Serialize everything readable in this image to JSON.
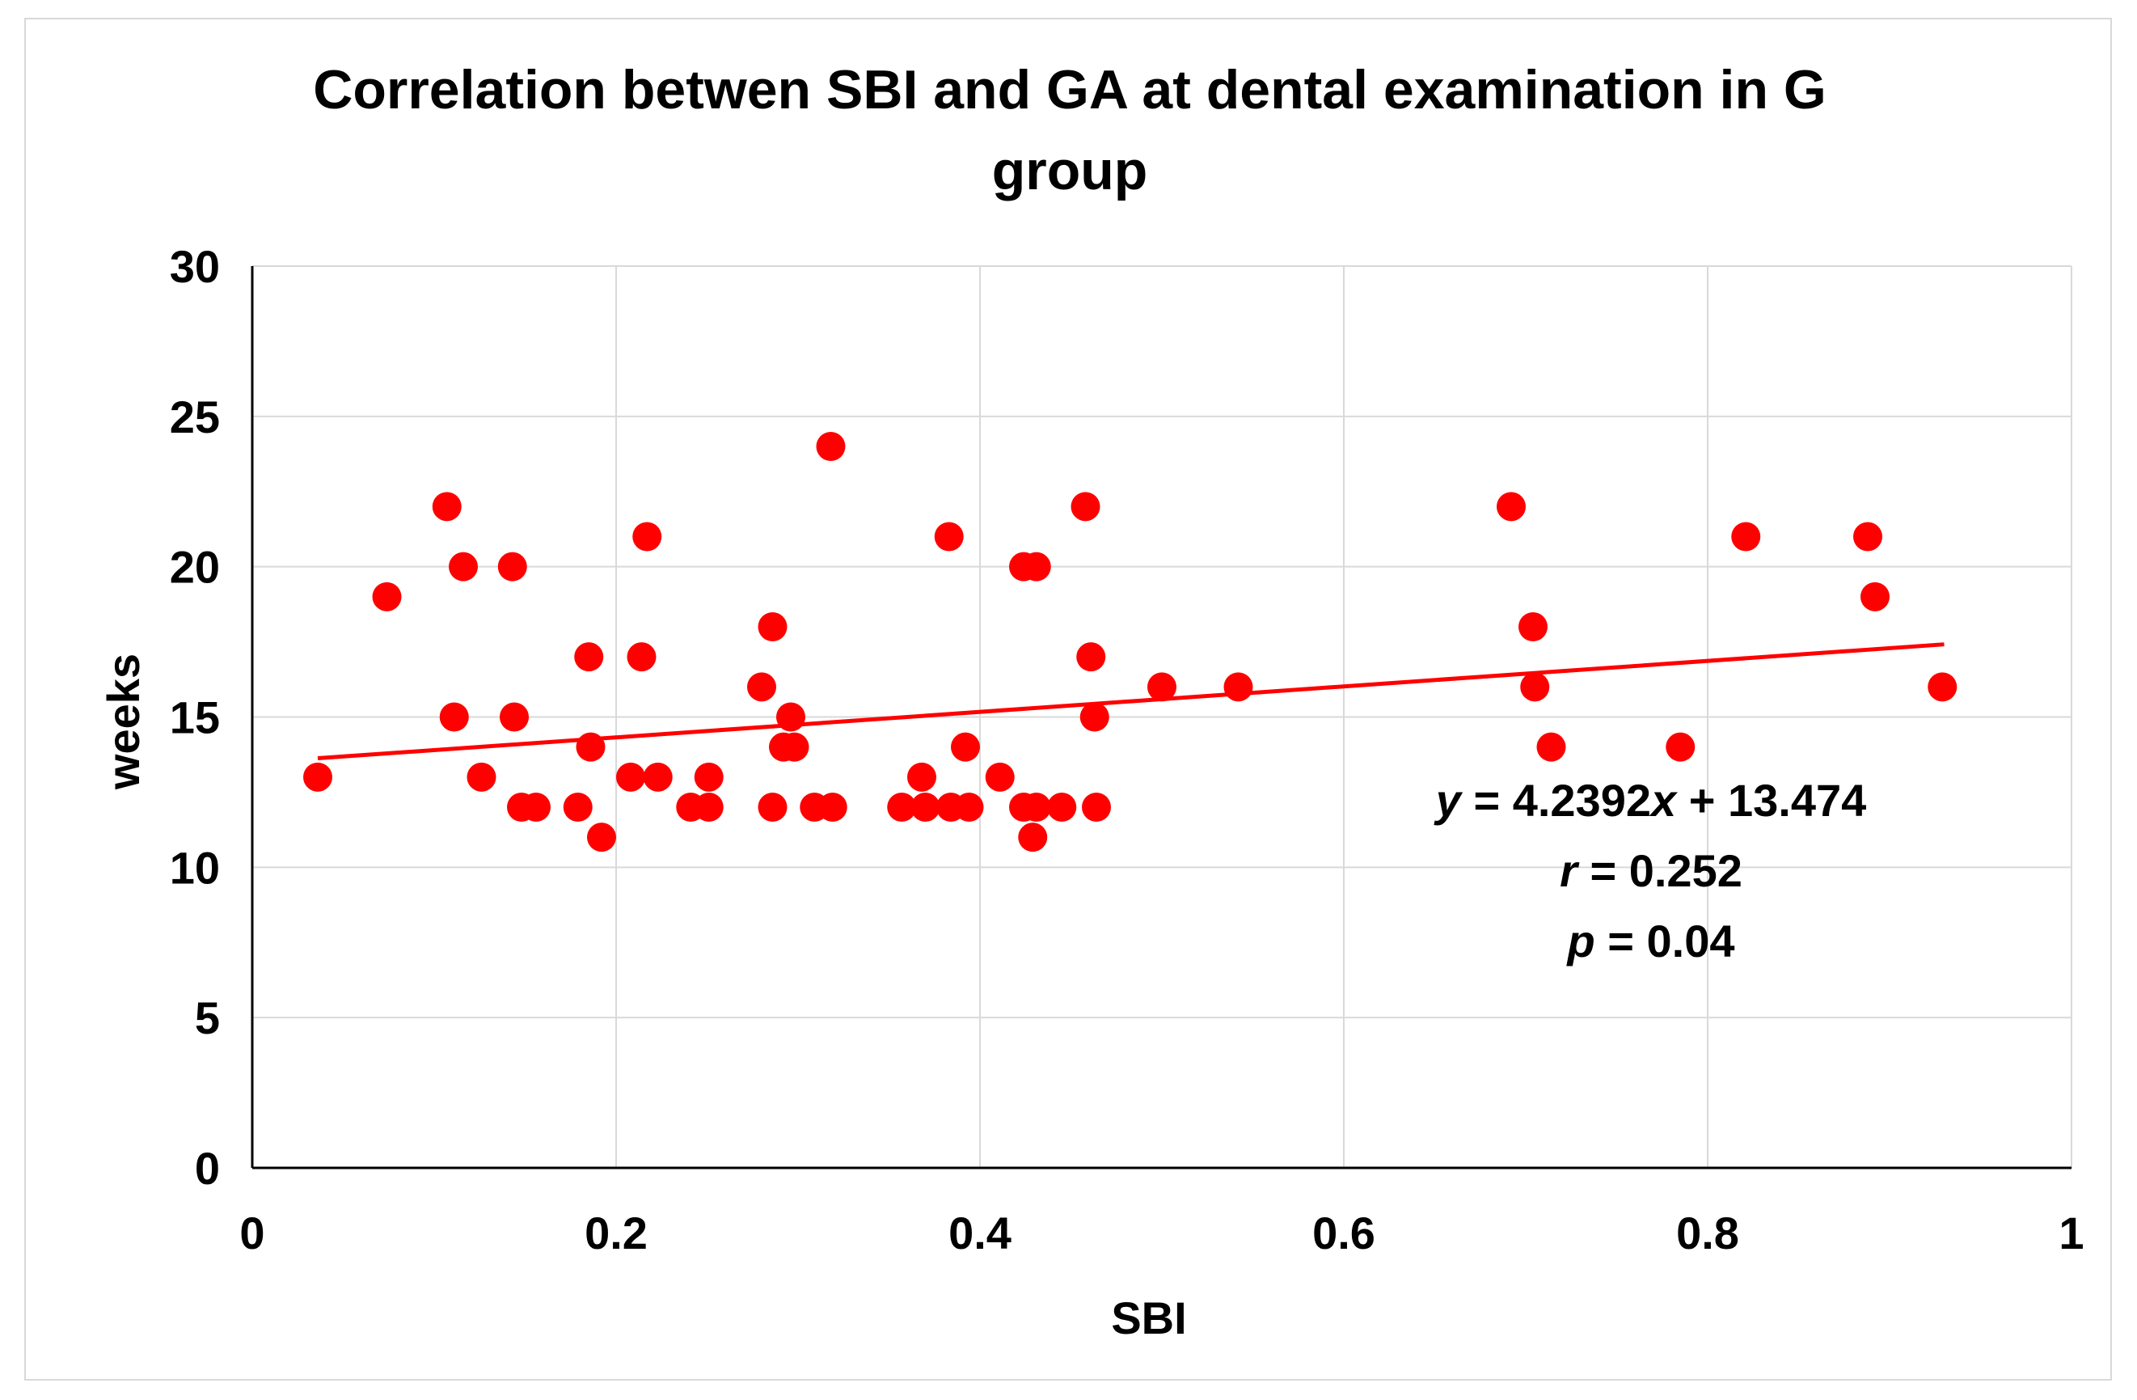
{
  "chart_data": {
    "type": "scatter",
    "title_lines": [
      "Correlation betwen SBI and GA at dental examination in G",
      "group"
    ],
    "xlabel": "SBI",
    "ylabel": "weeks",
    "xlim": [
      0,
      1
    ],
    "ylim": [
      0,
      30
    ],
    "x_ticks": [
      0,
      0.2,
      0.4,
      0.6,
      0.8,
      1
    ],
    "x_tick_labels": [
      "0",
      "0.2",
      "0.4",
      "0.6",
      "0.8",
      "1"
    ],
    "y_ticks": [
      0,
      5,
      10,
      15,
      20,
      25,
      30
    ],
    "y_tick_labels": [
      "0",
      "5",
      "10",
      "15",
      "20",
      "25",
      "30"
    ],
    "grid": true,
    "marker_color": "#ff0000",
    "trendline": {
      "slope": 4.2392,
      "intercept": 13.474,
      "x_range": [
        0.036,
        0.93
      ],
      "color": "#ff0000"
    },
    "annotation": {
      "equation": {
        "var_y": "y",
        "eq_a": " = 4.2392",
        "var_x": "x",
        "eq_b": " + 13.474"
      },
      "r": {
        "var": "r",
        "text": " = 0.252"
      },
      "p": {
        "var": "p",
        "text": " = 0.04"
      }
    },
    "points": [
      {
        "x": 0.036,
        "y": 13
      },
      {
        "x": 0.074,
        "y": 19
      },
      {
        "x": 0.107,
        "y": 22
      },
      {
        "x": 0.111,
        "y": 15
      },
      {
        "x": 0.116,
        "y": 20
      },
      {
        "x": 0.126,
        "y": 13
      },
      {
        "x": 0.143,
        "y": 20
      },
      {
        "x": 0.144,
        "y": 15
      },
      {
        "x": 0.148,
        "y": 12
      },
      {
        "x": 0.156,
        "y": 12
      },
      {
        "x": 0.179,
        "y": 12
      },
      {
        "x": 0.185,
        "y": 17
      },
      {
        "x": 0.186,
        "y": 14
      },
      {
        "x": 0.192,
        "y": 11
      },
      {
        "x": 0.208,
        "y": 13
      },
      {
        "x": 0.214,
        "y": 17
      },
      {
        "x": 0.217,
        "y": 21
      },
      {
        "x": 0.223,
        "y": 13
      },
      {
        "x": 0.241,
        "y": 12
      },
      {
        "x": 0.251,
        "y": 13
      },
      {
        "x": 0.251,
        "y": 12
      },
      {
        "x": 0.28,
        "y": 16
      },
      {
        "x": 0.286,
        "y": 18
      },
      {
        "x": 0.286,
        "y": 12
      },
      {
        "x": 0.292,
        "y": 14
      },
      {
        "x": 0.296,
        "y": 15
      },
      {
        "x": 0.298,
        "y": 14
      },
      {
        "x": 0.309,
        "y": 12
      },
      {
        "x": 0.318,
        "y": 24
      },
      {
        "x": 0.319,
        "y": 12
      },
      {
        "x": 0.357,
        "y": 12
      },
      {
        "x": 0.368,
        "y": 13
      },
      {
        "x": 0.37,
        "y": 12
      },
      {
        "x": 0.383,
        "y": 21
      },
      {
        "x": 0.384,
        "y": 12
      },
      {
        "x": 0.392,
        "y": 14
      },
      {
        "x": 0.394,
        "y": 12
      },
      {
        "x": 0.411,
        "y": 13
      },
      {
        "x": 0.424,
        "y": 20
      },
      {
        "x": 0.424,
        "y": 12
      },
      {
        "x": 0.429,
        "y": 11
      },
      {
        "x": 0.431,
        "y": 20
      },
      {
        "x": 0.431,
        "y": 12
      },
      {
        "x": 0.445,
        "y": 12
      },
      {
        "x": 0.458,
        "y": 22
      },
      {
        "x": 0.461,
        "y": 17
      },
      {
        "x": 0.463,
        "y": 15
      },
      {
        "x": 0.464,
        "y": 12
      },
      {
        "x": 0.5,
        "y": 16
      },
      {
        "x": 0.542,
        "y": 16
      },
      {
        "x": 0.692,
        "y": 22
      },
      {
        "x": 0.704,
        "y": 18
      },
      {
        "x": 0.705,
        "y": 16
      },
      {
        "x": 0.714,
        "y": 14
      },
      {
        "x": 0.785,
        "y": 14
      },
      {
        "x": 0.821,
        "y": 21
      },
      {
        "x": 0.888,
        "y": 21
      },
      {
        "x": 0.892,
        "y": 19
      },
      {
        "x": 0.929,
        "y": 16
      }
    ]
  }
}
